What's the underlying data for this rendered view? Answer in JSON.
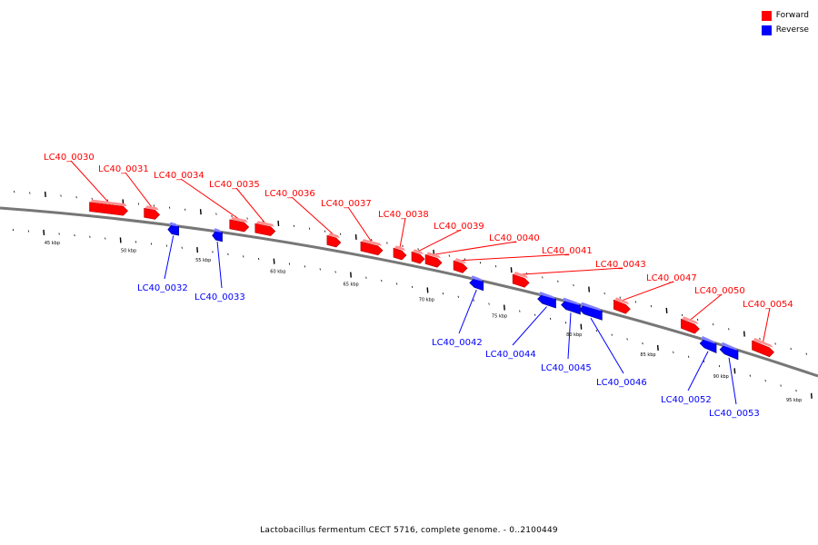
{
  "legend": {
    "forward_label": "Forward",
    "reverse_label": "Reverse",
    "forward_color": "#ff0000",
    "reverse_color": "#0000ff"
  },
  "caption": "Lactobacillus fermentum CECT 5716, complete genome. - 0..2100449",
  "ticks": [
    "45 kbp",
    "50 kbp",
    "55 kbp",
    "60 kbp",
    "65 kbp",
    "70 kbp",
    "75 kbp",
    "80 kbp",
    "85 kbp",
    "90 kbp",
    "95 kbp"
  ],
  "genes": [
    {
      "id": "LC40_0030",
      "strand": "forward"
    },
    {
      "id": "LC40_0031",
      "strand": "forward"
    },
    {
      "id": "LC40_0032",
      "strand": "reverse"
    },
    {
      "id": "LC40_0033",
      "strand": "reverse"
    },
    {
      "id": "LC40_0034",
      "strand": "forward"
    },
    {
      "id": "LC40_0035",
      "strand": "forward"
    },
    {
      "id": "LC40_0036",
      "strand": "forward"
    },
    {
      "id": "LC40_0037",
      "strand": "forward"
    },
    {
      "id": "LC40_0038",
      "strand": "forward"
    },
    {
      "id": "LC40_0039",
      "strand": "forward"
    },
    {
      "id": "LC40_0040",
      "strand": "forward"
    },
    {
      "id": "LC40_0041",
      "strand": "forward"
    },
    {
      "id": "LC40_0042",
      "strand": "reverse"
    },
    {
      "id": "LC40_0043",
      "strand": "forward"
    },
    {
      "id": "LC40_0044",
      "strand": "reverse"
    },
    {
      "id": "LC40_0045",
      "strand": "reverse"
    },
    {
      "id": "LC40_0046",
      "strand": "reverse"
    },
    {
      "id": "LC40_0047",
      "strand": "forward"
    },
    {
      "id": "LC40_0050",
      "strand": "forward"
    },
    {
      "id": "LC40_0052",
      "strand": "reverse"
    },
    {
      "id": "LC40_0053",
      "strand": "reverse"
    },
    {
      "id": "LC40_0054",
      "strand": "forward"
    }
  ]
}
